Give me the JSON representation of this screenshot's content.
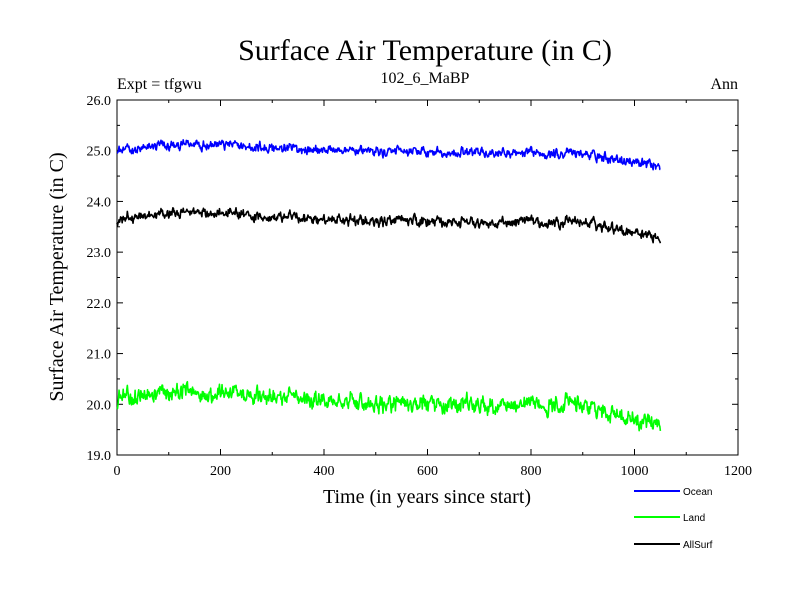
{
  "chart_data": {
    "type": "line",
    "title": "Surface Air Temperature (in C)",
    "subtitle": "102_6_MaBP",
    "left_label": "Expt = tfgwu",
    "right_label": "Ann",
    "xlabel": "Time (in years since start)",
    "ylabel": "Surface Air Temperature (in C)",
    "xlim": [
      0,
      1200
    ],
    "ylim": [
      19.0,
      26.0
    ],
    "xticks": [
      0,
      200,
      400,
      600,
      800,
      1000,
      1200
    ],
    "yticks": [
      19.0,
      20.0,
      21.0,
      22.0,
      23.0,
      24.0,
      25.0,
      26.0
    ],
    "xtick_labels": [
      "0",
      "200",
      "400",
      "600",
      "800",
      "1000",
      "1200"
    ],
    "ytick_labels": [
      "19.0",
      "20.0",
      "21.0",
      "22.0",
      "23.0",
      "24.0",
      "25.0",
      "26.0"
    ],
    "x_range_years": [
      0,
      1050
    ],
    "legend_position": "bottom-right, outside plot",
    "series": [
      {
        "name": "Ocean",
        "color": "#0000ff",
        "mean": 25.0,
        "amplitude": 0.12,
        "anchors": [
          [
            0,
            25.0
          ],
          [
            150,
            25.15
          ],
          [
            300,
            25.05
          ],
          [
            500,
            24.98
          ],
          [
            700,
            24.95
          ],
          [
            900,
            24.95
          ],
          [
            1050,
            24.7
          ]
        ]
      },
      {
        "name": "Land",
        "color": "#00ff00",
        "mean": 20.1,
        "amplitude": 0.22,
        "anchors": [
          [
            0,
            20.1
          ],
          [
            150,
            20.25
          ],
          [
            300,
            20.15
          ],
          [
            500,
            20.0
          ],
          [
            700,
            19.98
          ],
          [
            900,
            20.0
          ],
          [
            1050,
            19.6
          ]
        ]
      },
      {
        "name": "AllSurf",
        "color": "#000000",
        "mean": 23.65,
        "amplitude": 0.13,
        "anchors": [
          [
            0,
            23.65
          ],
          [
            150,
            23.8
          ],
          [
            300,
            23.7
          ],
          [
            500,
            23.6
          ],
          [
            700,
            23.58
          ],
          [
            900,
            23.6
          ],
          [
            1050,
            23.3
          ]
        ]
      }
    ]
  }
}
